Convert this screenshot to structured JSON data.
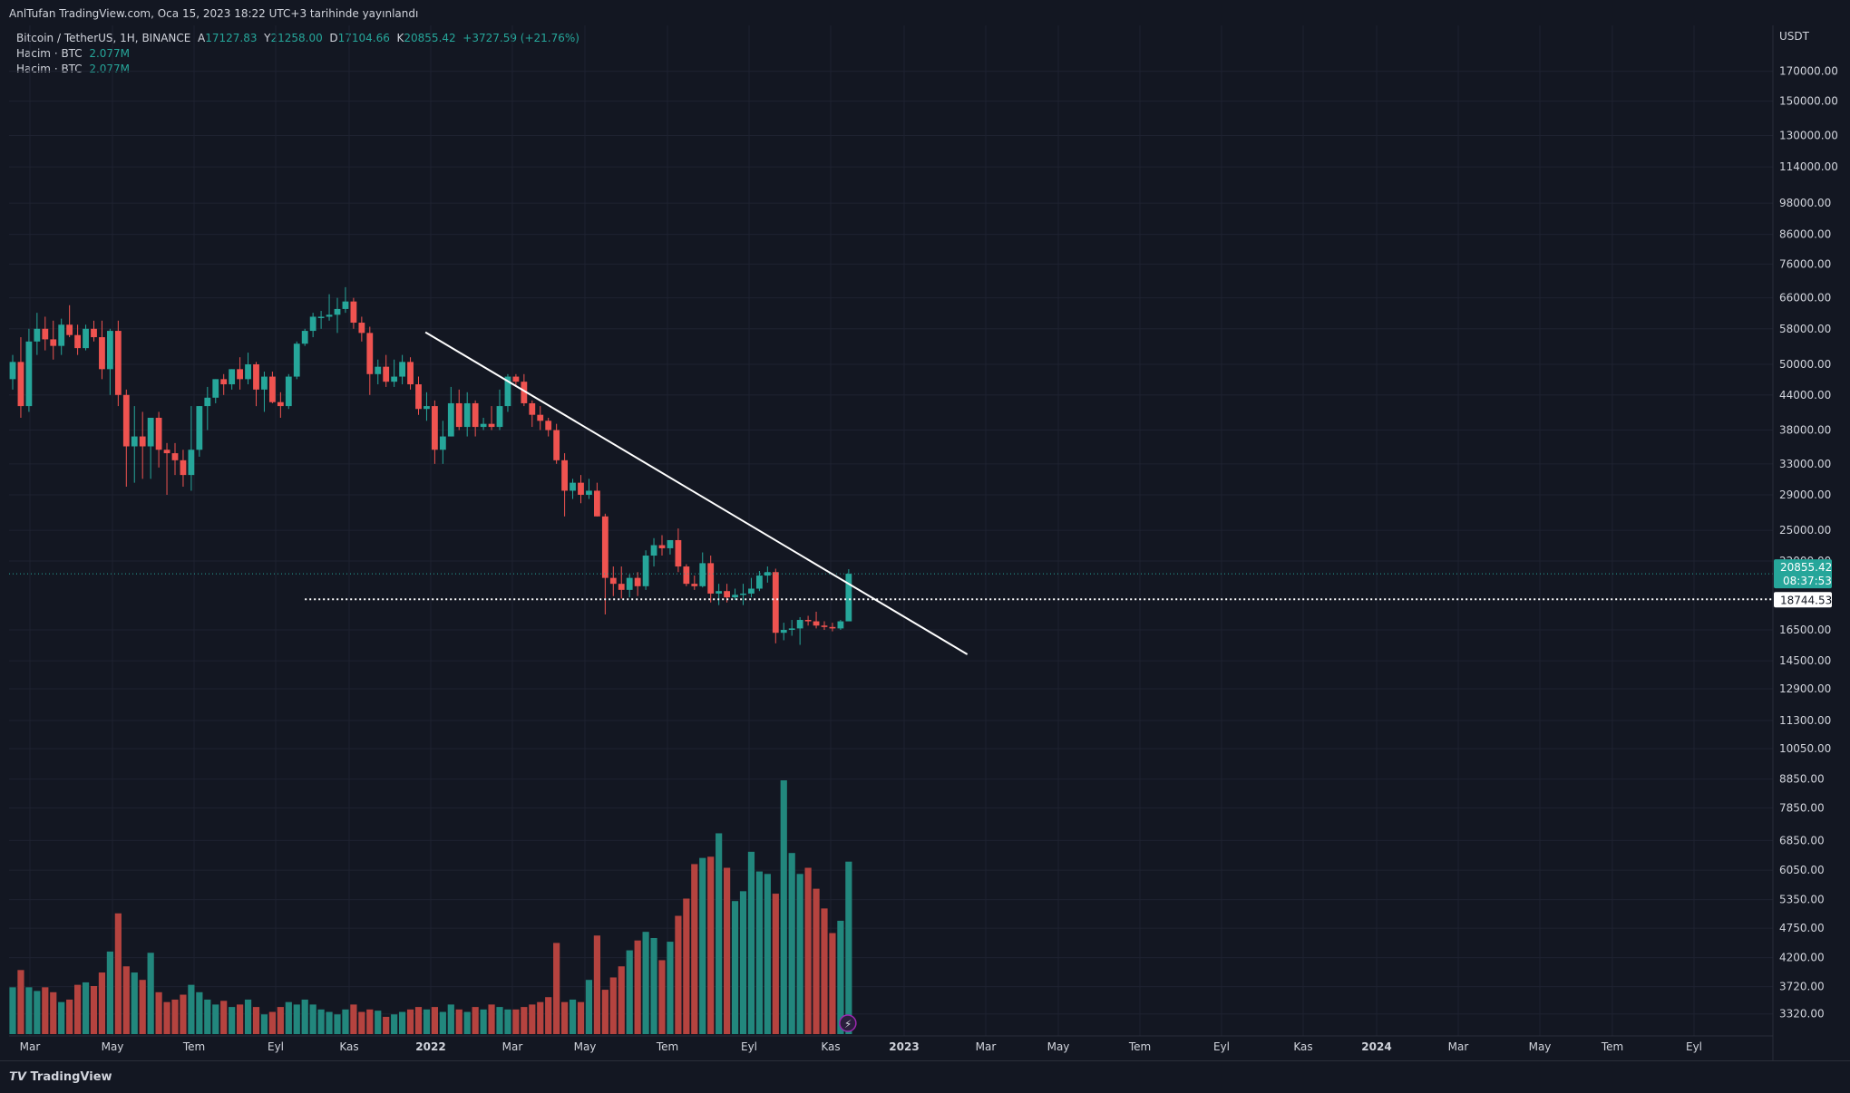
{
  "header": {
    "published": "AnlTufan TradingView.com, Oca 15, 2023 18:22 UTC+3 tarihinde yayınlandı"
  },
  "legend": {
    "symbol": "Bitcoin / TetherUS, 1H, BINANCE",
    "o_label": "A",
    "o": "17127.83",
    "h_label": "Y",
    "h": "21258.00",
    "l_label": "D",
    "l": "17104.66",
    "c_label": "K",
    "c": "20855.42",
    "change": "+3727.59 (+21.76%)",
    "vol1_label": "Hacim · BTC",
    "vol1": "2.077M",
    "vol2_label": "Hacim · BTC",
    "vol2": "2.077M"
  },
  "price_axis": {
    "currency": "USDT",
    "ticks": [
      "170000.00",
      "150000.00",
      "130000.00",
      "114000.00",
      "98000.00",
      "86000.00",
      "76000.00",
      "66000.00",
      "58000.00",
      "50000.00",
      "44000.00",
      "38000.00",
      "33000.00",
      "29000.00",
      "25000.00",
      "22000.00",
      "16500.00",
      "14500.00",
      "12900.00",
      "11300.00",
      "10050.00",
      "8850.00",
      "7850.00",
      "6850.00",
      "6050.00",
      "5350.00",
      "4750.00",
      "4200.00",
      "3720.00",
      "3320.00"
    ],
    "last_price": "20855.42",
    "countdown": "08:37:53",
    "level_price": "18744.53"
  },
  "time_axis": {
    "ticks": [
      "Mar",
      "May",
      "Tem",
      "Eyl",
      "Kas",
      "2022",
      "Mar",
      "May",
      "Tem",
      "Eyl",
      "Kas",
      "2023",
      "Mar",
      "May",
      "Tem",
      "Eyl",
      "Kas",
      "2024",
      "Mar",
      "May",
      "Tem",
      "Eyl"
    ]
  },
  "footer": {
    "brand": "TradingView"
  },
  "colors": {
    "up": "#26a69a",
    "down": "#ef5350",
    "volume_up": "#22877d",
    "volume_down": "#b5433f",
    "background": "#131722",
    "grid": "#1e2230",
    "trendline": "#ffffff",
    "last_price_bg": "#26a69a"
  },
  "chart_data": {
    "type": "candlestick",
    "interval": "weekly candles (display label 1H)",
    "price_scale": "log",
    "candles": [
      {
        "o": 47000,
        "h": 52000,
        "l": 45000,
        "c": 50500
      },
      {
        "o": 50500,
        "h": 56000,
        "l": 40000,
        "c": 42000
      },
      {
        "o": 42000,
        "h": 58000,
        "l": 41000,
        "c": 55000
      },
      {
        "o": 55000,
        "h": 62000,
        "l": 52000,
        "c": 58000
      },
      {
        "o": 58000,
        "h": 61000,
        "l": 53000,
        "c": 55500
      },
      {
        "o": 55500,
        "h": 60000,
        "l": 51000,
        "c": 54000
      },
      {
        "o": 54000,
        "h": 60500,
        "l": 52000,
        "c": 59000
      },
      {
        "o": 59000,
        "h": 64000,
        "l": 56000,
        "c": 56500
      },
      {
        "o": 56500,
        "h": 59000,
        "l": 52000,
        "c": 53500
      },
      {
        "o": 53500,
        "h": 59000,
        "l": 53000,
        "c": 58000
      },
      {
        "o": 58000,
        "h": 60000,
        "l": 55000,
        "c": 56000
      },
      {
        "o": 56000,
        "h": 60000,
        "l": 47000,
        "c": 49000
      },
      {
        "o": 49000,
        "h": 58000,
        "l": 44000,
        "c": 57500
      },
      {
        "o": 57500,
        "h": 60000,
        "l": 42000,
        "c": 44000
      },
      {
        "o": 44000,
        "h": 45000,
        "l": 30000,
        "c": 35500
      },
      {
        "o": 35500,
        "h": 42000,
        "l": 30500,
        "c": 37000
      },
      {
        "o": 37000,
        "h": 41000,
        "l": 31000,
        "c": 35500
      },
      {
        "o": 35500,
        "h": 39500,
        "l": 31000,
        "c": 40000
      },
      {
        "o": 40000,
        "h": 41000,
        "l": 32500,
        "c": 35000
      },
      {
        "o": 35000,
        "h": 36000,
        "l": 29000,
        "c": 34500
      },
      {
        "o": 34500,
        "h": 36000,
        "l": 31500,
        "c": 33500
      },
      {
        "o": 33500,
        "h": 35000,
        "l": 30000,
        "c": 31500
      },
      {
        "o": 31500,
        "h": 42000,
        "l": 29500,
        "c": 35000
      },
      {
        "o": 35000,
        "h": 42000,
        "l": 34000,
        "c": 42000
      },
      {
        "o": 42000,
        "h": 45500,
        "l": 38000,
        "c": 43500
      },
      {
        "o": 43500,
        "h": 47000,
        "l": 42500,
        "c": 47000
      },
      {
        "o": 47000,
        "h": 48000,
        "l": 44000,
        "c": 46000
      },
      {
        "o": 46000,
        "h": 49000,
        "l": 45000,
        "c": 49000
      },
      {
        "o": 49000,
        "h": 51500,
        "l": 45000,
        "c": 47000
      },
      {
        "o": 47000,
        "h": 52500,
        "l": 46000,
        "c": 50000
      },
      {
        "o": 50000,
        "h": 50500,
        "l": 42000,
        "c": 45000
      },
      {
        "o": 45000,
        "h": 48500,
        "l": 41000,
        "c": 47500
      },
      {
        "o": 47500,
        "h": 48500,
        "l": 42500,
        "c": 42700
      },
      {
        "o": 42700,
        "h": 44500,
        "l": 40000,
        "c": 42000
      },
      {
        "o": 42000,
        "h": 48000,
        "l": 41500,
        "c": 47500
      },
      {
        "o": 47500,
        "h": 55000,
        "l": 47000,
        "c": 54500
      },
      {
        "o": 54500,
        "h": 58000,
        "l": 54000,
        "c": 57500
      },
      {
        "o": 57500,
        "h": 62000,
        "l": 56000,
        "c": 61000
      },
      {
        "o": 61000,
        "h": 62500,
        "l": 58000,
        "c": 61000
      },
      {
        "o": 61000,
        "h": 67000,
        "l": 60000,
        "c": 61500
      },
      {
        "o": 61500,
        "h": 66000,
        "l": 57000,
        "c": 63000
      },
      {
        "o": 63000,
        "h": 69000,
        "l": 62000,
        "c": 65000
      },
      {
        "o": 65000,
        "h": 66000,
        "l": 58000,
        "c": 59500
      },
      {
        "o": 59500,
        "h": 61000,
        "l": 55000,
        "c": 57000
      },
      {
        "o": 57000,
        "h": 58500,
        "l": 44000,
        "c": 48000
      },
      {
        "o": 48000,
        "h": 51000,
        "l": 46000,
        "c": 49500
      },
      {
        "o": 49500,
        "h": 52000,
        "l": 45500,
        "c": 46500
      },
      {
        "o": 46500,
        "h": 51000,
        "l": 45500,
        "c": 47500
      },
      {
        "o": 47500,
        "h": 52000,
        "l": 46000,
        "c": 50500
      },
      {
        "o": 50500,
        "h": 51500,
        "l": 45000,
        "c": 46000
      },
      {
        "o": 46000,
        "h": 47500,
        "l": 40500,
        "c": 41500
      },
      {
        "o": 41500,
        "h": 44500,
        "l": 39500,
        "c": 42000
      },
      {
        "o": 42000,
        "h": 43000,
        "l": 33000,
        "c": 35000
      },
      {
        "o": 35000,
        "h": 39500,
        "l": 33000,
        "c": 37000
      },
      {
        "o": 37000,
        "h": 45500,
        "l": 37000,
        "c": 42500
      },
      {
        "o": 42500,
        "h": 45000,
        "l": 38000,
        "c": 38500
      },
      {
        "o": 38500,
        "h": 44500,
        "l": 37000,
        "c": 42500
      },
      {
        "o": 42500,
        "h": 43000,
        "l": 37000,
        "c": 38500
      },
      {
        "o": 38500,
        "h": 40000,
        "l": 38000,
        "c": 39000
      },
      {
        "o": 39000,
        "h": 42000,
        "l": 38000,
        "c": 38500
      },
      {
        "o": 38500,
        "h": 45000,
        "l": 38000,
        "c": 42000
      },
      {
        "o": 42000,
        "h": 48000,
        "l": 41000,
        "c": 47500
      },
      {
        "o": 47500,
        "h": 48000,
        "l": 45500,
        "c": 46500
      },
      {
        "o": 46500,
        "h": 48000,
        "l": 42000,
        "c": 42500
      },
      {
        "o": 42500,
        "h": 43000,
        "l": 38500,
        "c": 40500
      },
      {
        "o": 40500,
        "h": 42000,
        "l": 38000,
        "c": 39500
      },
      {
        "o": 39500,
        "h": 40000,
        "l": 37000,
        "c": 38000
      },
      {
        "o": 38000,
        "h": 39000,
        "l": 33000,
        "c": 33500
      },
      {
        "o": 33500,
        "h": 34500,
        "l": 26500,
        "c": 29500
      },
      {
        "o": 29500,
        "h": 31000,
        "l": 28500,
        "c": 30500
      },
      {
        "o": 30500,
        "h": 31500,
        "l": 28000,
        "c": 29000
      },
      {
        "o": 29000,
        "h": 31000,
        "l": 28500,
        "c": 29500
      },
      {
        "o": 29500,
        "h": 30500,
        "l": 26500,
        "c": 26500
      },
      {
        "o": 26500,
        "h": 26800,
        "l": 17600,
        "c": 20500
      },
      {
        "o": 20500,
        "h": 21500,
        "l": 19000,
        "c": 20000
      },
      {
        "o": 20000,
        "h": 21500,
        "l": 18800,
        "c": 19500
      },
      {
        "o": 19500,
        "h": 20800,
        "l": 18900,
        "c": 20500
      },
      {
        "o": 20500,
        "h": 21000,
        "l": 19000,
        "c": 19800
      },
      {
        "o": 19800,
        "h": 23000,
        "l": 19500,
        "c": 22500
      },
      {
        "o": 22500,
        "h": 24200,
        "l": 21500,
        "c": 23500
      },
      {
        "o": 23500,
        "h": 24500,
        "l": 22500,
        "c": 23200
      },
      {
        "o": 23200,
        "h": 24000,
        "l": 22600,
        "c": 24000
      },
      {
        "o": 24000,
        "h": 25200,
        "l": 21000,
        "c": 21500
      },
      {
        "o": 21500,
        "h": 21700,
        "l": 19800,
        "c": 20000
      },
      {
        "o": 20000,
        "h": 20700,
        "l": 19500,
        "c": 19800
      },
      {
        "o": 19800,
        "h": 22800,
        "l": 19700,
        "c": 21800
      },
      {
        "o": 21800,
        "h": 22500,
        "l": 18500,
        "c": 19200
      },
      {
        "o": 19200,
        "h": 20000,
        "l": 18300,
        "c": 19400
      },
      {
        "o": 19400,
        "h": 20000,
        "l": 18500,
        "c": 18900
      },
      {
        "o": 18900,
        "h": 19600,
        "l": 18700,
        "c": 19100
      },
      {
        "o": 19100,
        "h": 20000,
        "l": 18300,
        "c": 19200
      },
      {
        "o": 19200,
        "h": 20500,
        "l": 18900,
        "c": 19600
      },
      {
        "o": 19600,
        "h": 21100,
        "l": 19400,
        "c": 20700
      },
      {
        "o": 20700,
        "h": 21500,
        "l": 20100,
        "c": 21000
      },
      {
        "o": 21000,
        "h": 21300,
        "l": 15600,
        "c": 16300
      },
      {
        "o": 16300,
        "h": 17000,
        "l": 15800,
        "c": 16500
      },
      {
        "o": 16500,
        "h": 17200,
        "l": 16100,
        "c": 16600
      },
      {
        "o": 16600,
        "h": 17400,
        "l": 15500,
        "c": 17200
      },
      {
        "o": 17200,
        "h": 17500,
        "l": 16800,
        "c": 17100
      },
      {
        "o": 17100,
        "h": 17800,
        "l": 16600,
        "c": 16800
      },
      {
        "o": 16800,
        "h": 17100,
        "l": 16500,
        "c": 16700
      },
      {
        "o": 16700,
        "h": 17000,
        "l": 16400,
        "c": 16600
      },
      {
        "o": 16600,
        "h": 17200,
        "l": 16500,
        "c": 17100
      },
      {
        "o": 17100,
        "h": 21258,
        "l": 17104,
        "c": 20855
      }
    ],
    "volume": [
      0.38,
      0.52,
      0.38,
      0.35,
      0.38,
      0.34,
      0.26,
      0.28,
      0.4,
      0.42,
      0.39,
      0.5,
      0.67,
      0.98,
      0.55,
      0.5,
      0.44,
      0.66,
      0.34,
      0.26,
      0.28,
      0.32,
      0.4,
      0.34,
      0.28,
      0.24,
      0.27,
      0.22,
      0.24,
      0.28,
      0.22,
      0.16,
      0.18,
      0.22,
      0.26,
      0.24,
      0.28,
      0.24,
      0.2,
      0.18,
      0.16,
      0.2,
      0.24,
      0.18,
      0.2,
      0.19,
      0.14,
      0.16,
      0.18,
      0.2,
      0.22,
      0.2,
      0.22,
      0.18,
      0.24,
      0.2,
      0.18,
      0.22,
      0.2,
      0.24,
      0.22,
      0.2,
      0.2,
      0.22,
      0.24,
      0.26,
      0.3,
      0.74,
      0.26,
      0.28,
      0.26,
      0.44,
      0.8,
      0.36,
      0.46,
      0.55,
      0.68,
      0.76,
      0.83,
      0.78,
      0.6,
      0.75,
      0.96,
      1.1,
      1.38,
      1.43,
      1.44,
      1.63,
      1.35,
      1.08,
      1.16,
      1.48,
      1.32,
      1.3,
      1.14,
      2.06,
      1.47,
      1.3,
      1.35,
      1.18,
      1.02,
      0.82,
      0.92,
      1.4
    ],
    "trendline": {
      "from_index": 57,
      "from_price": 53000,
      "to_index": 107,
      "to_price": 14900
    },
    "horizontal_level": {
      "price": 18744.53,
      "from_index": 36,
      "to_index": "right-edge",
      "style": "dotted"
    },
    "last_price_line": 20855.42
  }
}
